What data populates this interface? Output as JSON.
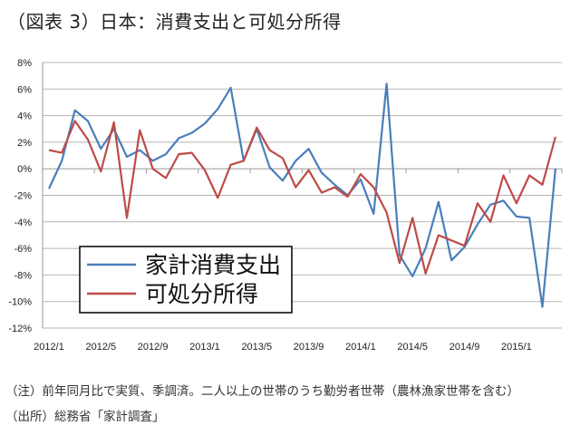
{
  "title": "（図表 3）日本：消費支出と可処分所得",
  "notes": [
    "（注）前年同月比で実質、季調済。二人以上の世帯のうち勤労者世帯（農林漁家世帯を含む）",
    "（出所）総務省「家計調査」"
  ],
  "chart_data": {
    "type": "line",
    "title": "",
    "xlabel": "",
    "ylabel": "",
    "ylim": [
      -12,
      8
    ],
    "yticks": [
      "8%",
      "6%",
      "4%",
      "2%",
      "0%",
      "-2%",
      "-4%",
      "-6%",
      "-8%",
      "-10%",
      "-12%"
    ],
    "ytick_values": [
      8,
      6,
      4,
      2,
      0,
      -2,
      -4,
      -6,
      -8,
      -10,
      -12
    ],
    "x_start": "2012/1",
    "x_end": "2015/4",
    "xtick_labels": [
      "2012/1",
      "2012/5",
      "2012/9",
      "2013/1",
      "2013/5",
      "2013/9",
      "2014/1",
      "2014/5",
      "2014/9",
      "2015/1"
    ],
    "grid": "horizontal",
    "legend": "bottom-left",
    "series": [
      {
        "name": "家計消費支出",
        "color": "#4a7ebb",
        "values": [
          -1.5,
          0.6,
          4.4,
          3.6,
          1.5,
          3.0,
          0.9,
          1.4,
          0.6,
          1.1,
          2.3,
          2.7,
          3.4,
          4.5,
          6.1,
          0.6,
          3.0,
          0.1,
          -0.9,
          0.6,
          1.5,
          -0.3,
          -1.2,
          -2.0,
          -0.8,
          -3.4,
          6.4,
          -6.5,
          -8.1,
          -6.0,
          -2.5,
          -6.9,
          -5.9,
          -4.2,
          -2.7,
          -2.4,
          -3.6,
          -3.7,
          -10.4,
          0.0
        ]
      },
      {
        "name": "可処分所得",
        "color": "#be4b48",
        "values": [
          1.4,
          1.2,
          3.6,
          2.2,
          -0.2,
          3.5,
          -3.7,
          2.9,
          0.0,
          -0.7,
          1.1,
          1.2,
          -0.1,
          -2.2,
          0.3,
          0.6,
          3.1,
          1.4,
          0.8,
          -1.4,
          -0.1,
          -1.8,
          -1.4,
          -2.1,
          -0.4,
          -1.4,
          -3.3,
          -7.1,
          -3.7,
          -7.9,
          -5.0,
          -5.4,
          -5.8,
          -2.6,
          -4.0,
          -0.5,
          -2.6,
          -0.5,
          -1.2,
          2.4
        ]
      }
    ]
  }
}
